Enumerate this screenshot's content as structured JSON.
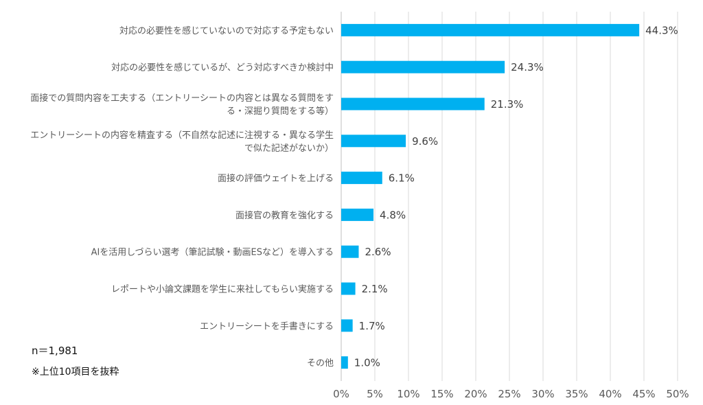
{
  "chart_data": {
    "type": "bar",
    "orientation": "horizontal",
    "categories": [
      [
        "対応の必要性を感じていないので対応する予定もない"
      ],
      [
        "対応の必要性を感じているが、どう対応すべきか検討中"
      ],
      [
        "面接での質問内容を工夫する（エントリーシートの内容とは異なる質問をす",
        "る・深掘り質問をする等）"
      ],
      [
        "エントリーシートの内容を精査する（不自然な記述に注視する・異なる学生",
        "で似た記述がないか）"
      ],
      [
        "面接の評価ウェイトを上げる"
      ],
      [
        "面接官の教育を強化する"
      ],
      [
        "AIを活用しづらい選考（筆記試験・動画ESなど）を導入する"
      ],
      [
        "レポートや小論文課題を学生に来社してもらい実施する"
      ],
      [
        "エントリーシートを手書きにする"
      ],
      [
        "その他"
      ]
    ],
    "values": [
      44.3,
      24.3,
      21.3,
      9.6,
      6.1,
      4.8,
      2.6,
      2.1,
      1.7,
      1.0
    ],
    "data_labels": [
      "44.3%",
      "24.3%",
      "21.3%",
      "9.6%",
      "6.1%",
      "4.8%",
      "2.6%",
      "2.1%",
      "1.7%",
      "1.0%"
    ],
    "xlim": [
      0,
      50
    ],
    "x_ticks": [
      "0%",
      "5%",
      "10%",
      "15%",
      "20%",
      "25%",
      "30%",
      "35%",
      "40%",
      "45%",
      "50%"
    ],
    "grid": "vertical",
    "bar_color": "#00B0F0",
    "title": "",
    "xlabel": "",
    "ylabel": ""
  },
  "notes": {
    "sample_size": "n＝1,981",
    "footnote": "※上位10項目を抜粋"
  }
}
